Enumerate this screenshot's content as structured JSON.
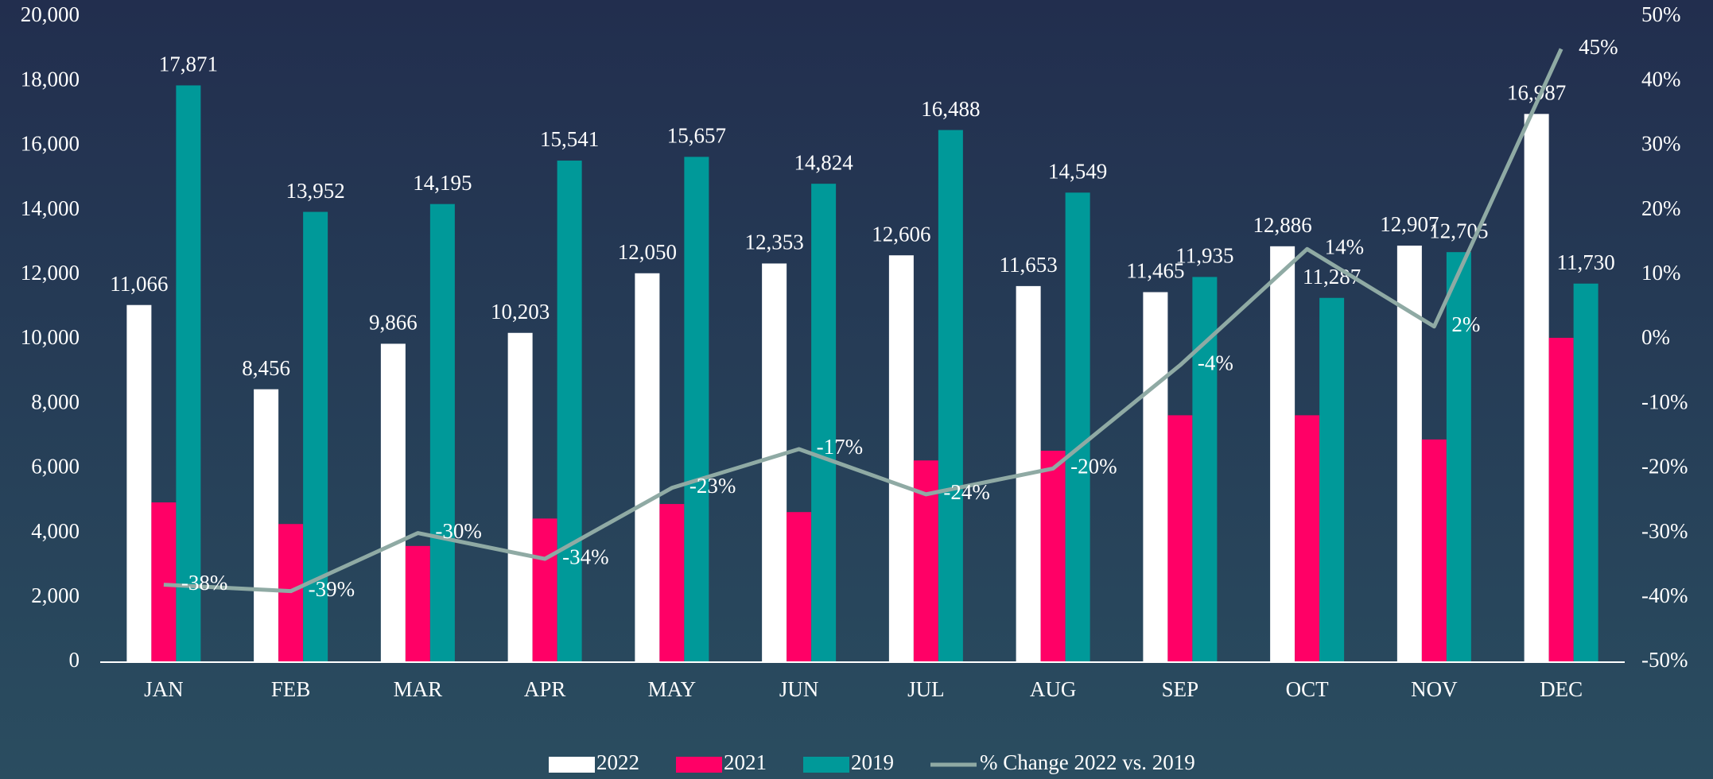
{
  "chart_data": {
    "type": "bar",
    "categories": [
      "JAN",
      "FEB",
      "MAR",
      "APR",
      "MAY",
      "JUN",
      "JUL",
      "AUG",
      "SEP",
      "OCT",
      "NOV",
      "DEC"
    ],
    "series": [
      {
        "name": "2022",
        "color": "#ffffff",
        "values": [
          11066,
          8456,
          9866,
          10203,
          12050,
          12353,
          12606,
          11653,
          11465,
          12886,
          12907,
          16987
        ],
        "value_labels": [
          "11,066",
          "8,456",
          "9,866",
          "10,203",
          "12,050",
          "12,353",
          "12,606",
          "11,653",
          "11,465",
          "12,886",
          "12,907",
          "16,987"
        ]
      },
      {
        "name": "2021",
        "color": "#ff0066",
        "values": [
          4950,
          4280,
          3600,
          4450,
          4900,
          4650,
          6250,
          6550,
          7650,
          7650,
          6900,
          10050
        ]
      },
      {
        "name": "2019",
        "color": "#009999",
        "values": [
          17871,
          13952,
          14195,
          15541,
          15657,
          14824,
          16488,
          14549,
          11935,
          11287,
          12705,
          11730
        ],
        "value_labels": [
          "17,871",
          "13,952",
          "14,195",
          "15,541",
          "15,657",
          "14,824",
          "16,488",
          "14,549",
          "11,935",
          "11,287",
          "12,705",
          "11,730"
        ]
      },
      {
        "name": "% Change 2022 vs. 2019",
        "type": "line",
        "axis": "y2",
        "color": "#8faaa4",
        "values": [
          -38,
          -39,
          -30,
          -34,
          -23,
          -17,
          -24,
          -20,
          -4,
          14,
          2,
          45
        ],
        "value_labels": [
          "-38%",
          "-39%",
          "-30%",
          "-34%",
          "-23%",
          "-17%",
          "-24%",
          "-20%",
          "-4%",
          "14%",
          "2%",
          "45%"
        ]
      }
    ],
    "ylim": [
      0,
      20000
    ],
    "yticks": [
      0,
      {
        "value": 2000,
        "label": "2,000"
      },
      {
        "value": 4000,
        "label": "4,000"
      },
      {
        "value": 6000,
        "label": "6,000"
      },
      {
        "value": 8000,
        "label": "8,000"
      },
      {
        "value": 10000,
        "label": "10,000"
      },
      {
        "value": 12000,
        "label": "12,000"
      },
      {
        "value": 14000,
        "label": "14,000"
      },
      {
        "value": 16000,
        "label": "16,000"
      },
      {
        "value": 18000,
        "label": "18,000"
      },
      {
        "value": 20000,
        "label": "20,000"
      }
    ],
    "y2lim": [
      -50,
      50
    ],
    "y2ticks": [
      {
        "value": -50,
        "label": "-50%"
      },
      {
        "value": -40,
        "label": "-40%"
      },
      {
        "value": -30,
        "label": "-30%"
      },
      {
        "value": -20,
        "label": "-20%"
      },
      {
        "value": -10,
        "label": "-10%"
      },
      {
        "value": 0,
        "label": "0%"
      },
      {
        "value": 10,
        "label": "10%"
      },
      {
        "value": 20,
        "label": "20%"
      },
      {
        "value": 30,
        "label": "30%"
      },
      {
        "value": 40,
        "label": "40%"
      },
      {
        "value": 50,
        "label": "50%"
      }
    ],
    "legend": "bottom",
    "grid": false
  }
}
